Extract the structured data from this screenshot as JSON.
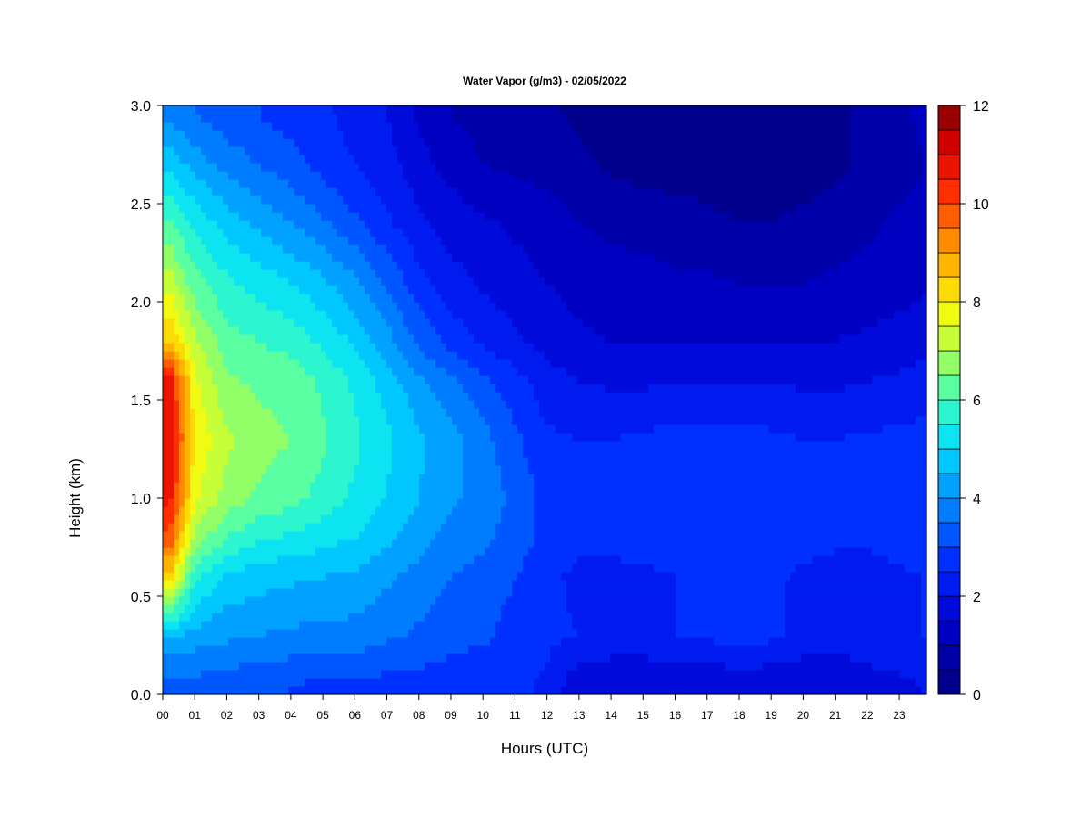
{
  "chart_data": {
    "type": "heatmap",
    "title": "Water Vapor (g/m3) - 02/05/2022",
    "xlabel": "Hours (UTC)",
    "ylabel": "Height (km)",
    "x_tick_labels": [
      "00",
      "01",
      "02",
      "03",
      "04",
      "05",
      "06",
      "07",
      "08",
      "09",
      "10",
      "11",
      "12",
      "13",
      "14",
      "15",
      "16",
      "17",
      "18",
      "19",
      "20",
      "21",
      "22",
      "23"
    ],
    "y_tick_labels": [
      "0.0",
      "0.5",
      "1.0",
      "1.5",
      "2.0",
      "2.5",
      "3.0"
    ],
    "xlim": [
      0,
      23.85
    ],
    "ylim": [
      0.0,
      3.0
    ],
    "colorbar": {
      "min": 0,
      "max": 12,
      "levels": 24,
      "tick_labels": [
        "0",
        "2",
        "4",
        "6",
        "8",
        "10",
        "12"
      ]
    },
    "x": [
      0.25,
      1,
      2,
      3,
      4,
      5,
      6,
      7,
      8,
      9,
      10,
      11,
      12,
      13,
      14,
      15,
      16,
      17,
      18,
      19,
      20,
      21,
      22,
      23,
      23.75
    ],
    "y": [
      0.05,
      0.3,
      0.6,
      0.8,
      1.0,
      1.3,
      1.6,
      1.8,
      2.1,
      2.4,
      2.7,
      2.95
    ],
    "z": [
      [
        3.2,
        3.3,
        3.2,
        3.1,
        3.0,
        2.9,
        2.9,
        2.8,
        2.8,
        2.7,
        2.6,
        2.6,
        2.4,
        1.6,
        1.5,
        1.5,
        1.5,
        1.5,
        1.6,
        1.6,
        1.6,
        1.6,
        1.8,
        1.9,
        2.0
      ],
      [
        4.6,
        4.3,
        4.1,
        4.0,
        3.9,
        3.8,
        3.8,
        3.6,
        3.4,
        3.2,
        3.1,
        2.8,
        2.6,
        2.5,
        2.4,
        2.4,
        2.5,
        2.6,
        2.8,
        2.6,
        2.3,
        2.2,
        2.3,
        2.4,
        2.5
      ],
      [
        8.2,
        5.6,
        4.9,
        4.7,
        4.6,
        4.5,
        4.4,
        4.1,
        3.8,
        3.5,
        3.3,
        3.0,
        2.6,
        2.4,
        2.4,
        2.4,
        2.5,
        2.5,
        2.7,
        2.6,
        2.4,
        2.3,
        2.3,
        2.4,
        2.5
      ],
      [
        9.8,
        6.8,
        6.0,
        5.6,
        5.4,
        5.2,
        5.0,
        4.6,
        4.2,
        3.8,
        3.6,
        3.3,
        2.8,
        2.6,
        2.6,
        2.7,
        2.8,
        2.8,
        3.0,
        2.8,
        2.7,
        2.6,
        2.6,
        2.7,
        2.8
      ],
      [
        10.6,
        7.6,
        6.8,
        6.4,
        6.2,
        5.8,
        5.4,
        5.0,
        4.5,
        4.1,
        3.8,
        3.4,
        2.8,
        2.6,
        2.6,
        2.7,
        2.8,
        2.8,
        2.9,
        2.7,
        2.6,
        2.6,
        2.7,
        2.7,
        2.8
      ],
      [
        10.9,
        7.9,
        7.1,
        6.7,
        6.5,
        6.1,
        5.6,
        5.1,
        4.6,
        4.2,
        3.7,
        3.1,
        2.6,
        2.5,
        2.5,
        2.6,
        2.7,
        2.7,
        2.7,
        2.6,
        2.5,
        2.5,
        2.6,
        2.6,
        2.7
      ],
      [
        10.6,
        7.6,
        6.6,
        6.4,
        6.3,
        5.9,
        5.4,
        4.8,
        4.1,
        3.6,
        3.1,
        2.7,
        2.2,
        2.0,
        1.9,
        1.9,
        2.0,
        2.0,
        2.0,
        2.0,
        1.9,
        1.9,
        2.0,
        2.1,
        2.2
      ],
      [
        8.4,
        7.1,
        6.2,
        6.0,
        5.8,
        5.4,
        4.9,
        4.2,
        3.4,
        2.8,
        2.4,
        2.1,
        1.8,
        1.6,
        1.5,
        1.5,
        1.5,
        1.5,
        1.5,
        1.5,
        1.5,
        1.5,
        1.6,
        1.7,
        1.8
      ],
      [
        7.2,
        6.2,
        5.6,
        5.3,
        5.0,
        4.6,
        4.1,
        3.4,
        2.7,
        2.2,
        1.9,
        1.7,
        1.5,
        1.3,
        1.2,
        1.2,
        1.1,
        1.1,
        1.0,
        1.0,
        1.0,
        1.1,
        1.2,
        1.3,
        1.4
      ],
      [
        6.0,
        5.4,
        4.8,
        4.4,
        4.0,
        3.6,
        3.1,
        2.6,
        2.1,
        1.8,
        1.6,
        1.4,
        1.3,
        1.0,
        0.9,
        0.8,
        0.7,
        0.6,
        0.5,
        0.5,
        0.6,
        0.7,
        0.9,
        1.1,
        1.2
      ],
      [
        4.8,
        4.3,
        3.8,
        3.5,
        3.2,
        2.8,
        2.5,
        2.2,
        1.7,
        1.3,
        1.0,
        0.9,
        0.8,
        0.6,
        0.4,
        0.3,
        0.3,
        0.3,
        0.3,
        0.3,
        0.3,
        0.4,
        0.6,
        0.8,
        1.0
      ],
      [
        3.8,
        3.5,
        3.2,
        3.0,
        2.8,
        2.6,
        2.3,
        2.0,
        1.4,
        1.0,
        0.8,
        0.7,
        0.6,
        0.4,
        0.3,
        0.2,
        0.2,
        0.2,
        0.2,
        0.2,
        0.3,
        0.4,
        0.6,
        0.9,
        1.1
      ]
    ]
  }
}
